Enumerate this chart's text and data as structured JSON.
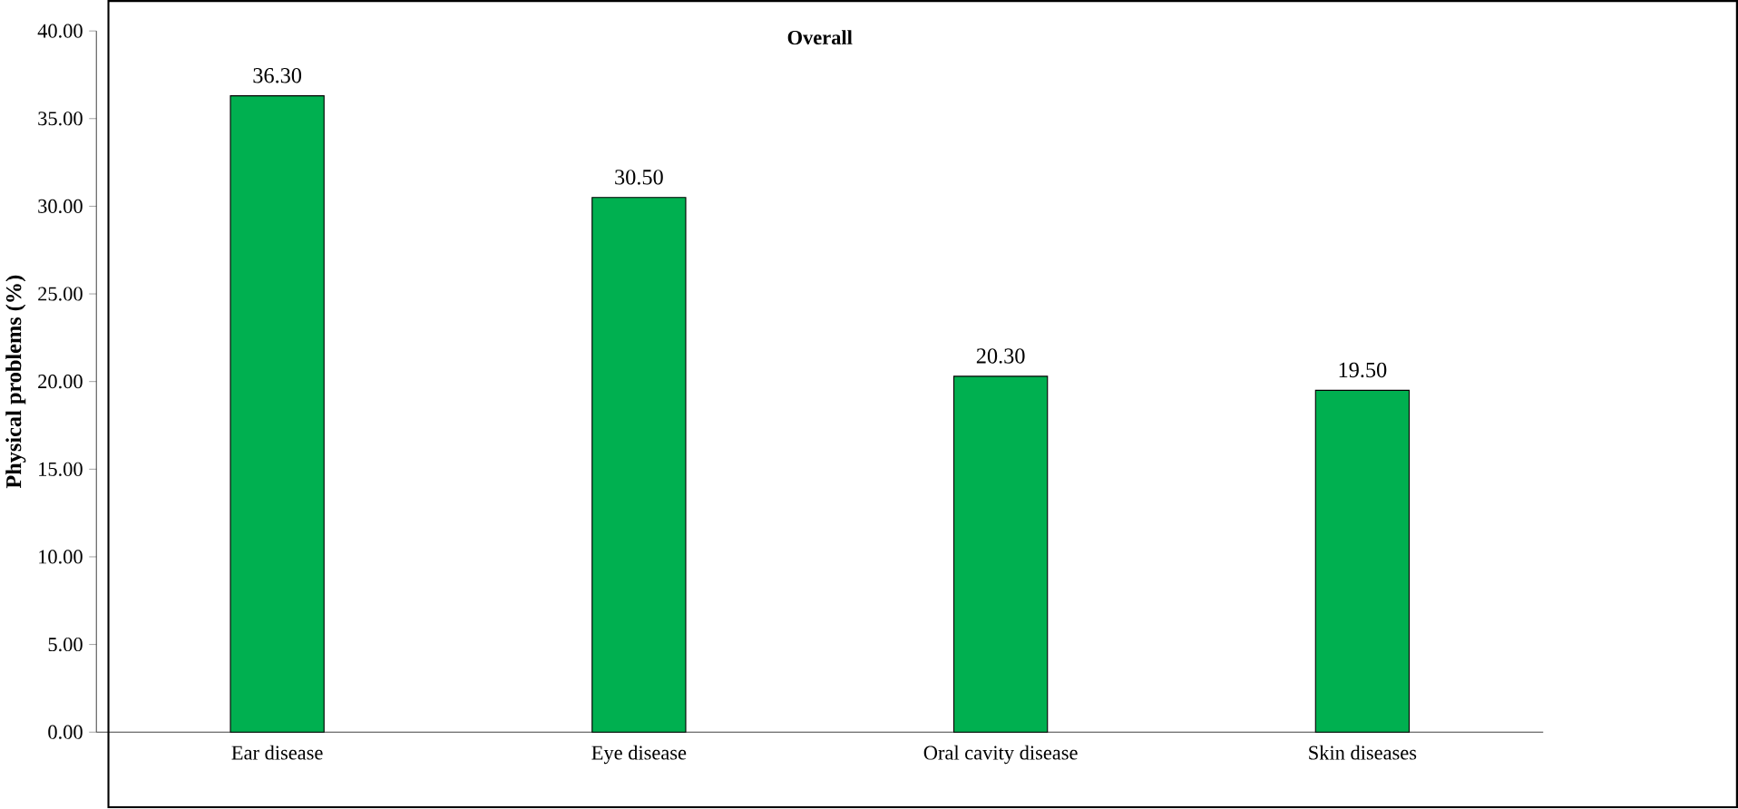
{
  "chart_data": {
    "type": "bar",
    "title": "Overall",
    "ylabel": "Physical problems (%)",
    "categories": [
      "Ear disease",
      "Eye disease",
      "Oral cavity disease",
      "Skin diseases"
    ],
    "values": [
      36.3,
      30.5,
      20.3,
      19.5
    ],
    "value_labels": [
      "36.30",
      "30.50",
      "20.30",
      "19.50"
    ],
    "color": "#00b050",
    "ylim": [
      0,
      40
    ],
    "yticks": [
      {
        "value": 0,
        "label": "0.00"
      },
      {
        "value": 5,
        "label": "5.00"
      },
      {
        "value": 10,
        "label": "10.00"
      },
      {
        "value": 15,
        "label": "15.00"
      },
      {
        "value": 20,
        "label": "20.00"
      },
      {
        "value": 25,
        "label": "25.00"
      },
      {
        "value": 30,
        "label": "30.00"
      },
      {
        "value": 35,
        "label": "35.00"
      },
      {
        "value": 40,
        "label": "40.00"
      }
    ]
  }
}
